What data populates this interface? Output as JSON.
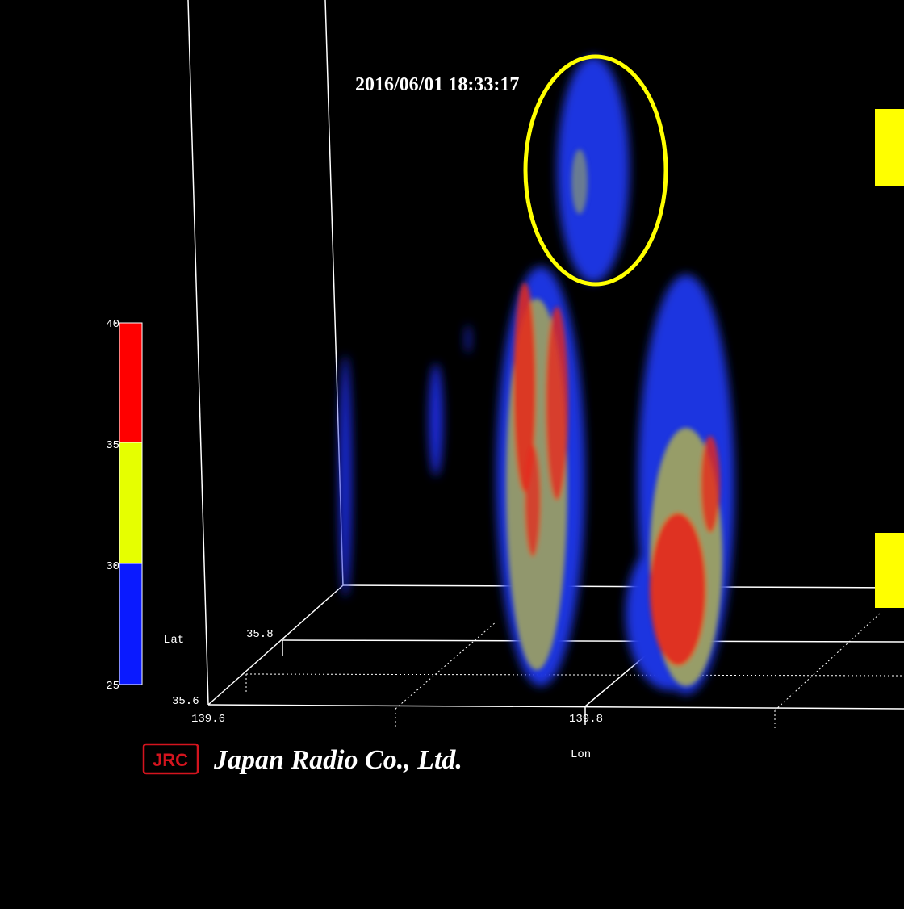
{
  "timestamp": "2016/06/01 18:33:17",
  "colorbar": {
    "ticks": [
      40,
      35,
      30,
      25
    ]
  },
  "axes": {
    "lat_label": "Lat",
    "lat_ticks": [
      35.8,
      35.6
    ],
    "lon_label": "Lon",
    "lon_ticks": [
      139.6,
      139.8
    ]
  },
  "logo": {
    "mark": "JRC",
    "company": "Japan Radio Co., Ltd."
  }
}
